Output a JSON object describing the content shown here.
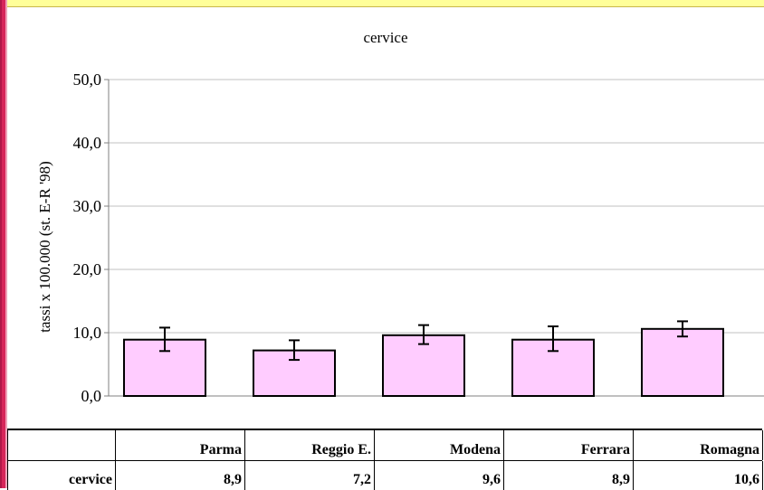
{
  "chart_data": {
    "type": "bar",
    "title": "cervice",
    "ylabel": "tassi x 100.000 (st. E-R '98)",
    "xlabel": "",
    "ylim": [
      0,
      50
    ],
    "yticks": [
      "0,0",
      "10,0",
      "20,0",
      "30,0",
      "40,0",
      "50,0"
    ],
    "ytick_values": [
      0,
      10,
      20,
      30,
      40,
      50
    ],
    "grid": true,
    "categories": [
      "Parma",
      "Reggio E.",
      "Modena",
      "Ferrara",
      "Romagna"
    ],
    "series": [
      {
        "name": "cervice",
        "values": [
          8.9,
          7.2,
          9.6,
          8.9,
          10.6
        ],
        "error_low": [
          7.1,
          5.7,
          8.2,
          7.1,
          9.4
        ],
        "error_high": [
          10.8,
          8.8,
          11.2,
          11.0,
          11.8
        ]
      }
    ],
    "colors": {
      "bar_fill": "#ffccff",
      "bar_stroke": "#000000",
      "gridline": "#c0c0c0"
    }
  },
  "table": {
    "headers": [
      "",
      "Parma",
      "Reggio E.",
      "Modena",
      "Ferrara",
      "Romagna"
    ],
    "row_label": "cervice",
    "values": [
      "8,9",
      "7,2",
      "9,6",
      "8,9",
      "10,6"
    ]
  }
}
